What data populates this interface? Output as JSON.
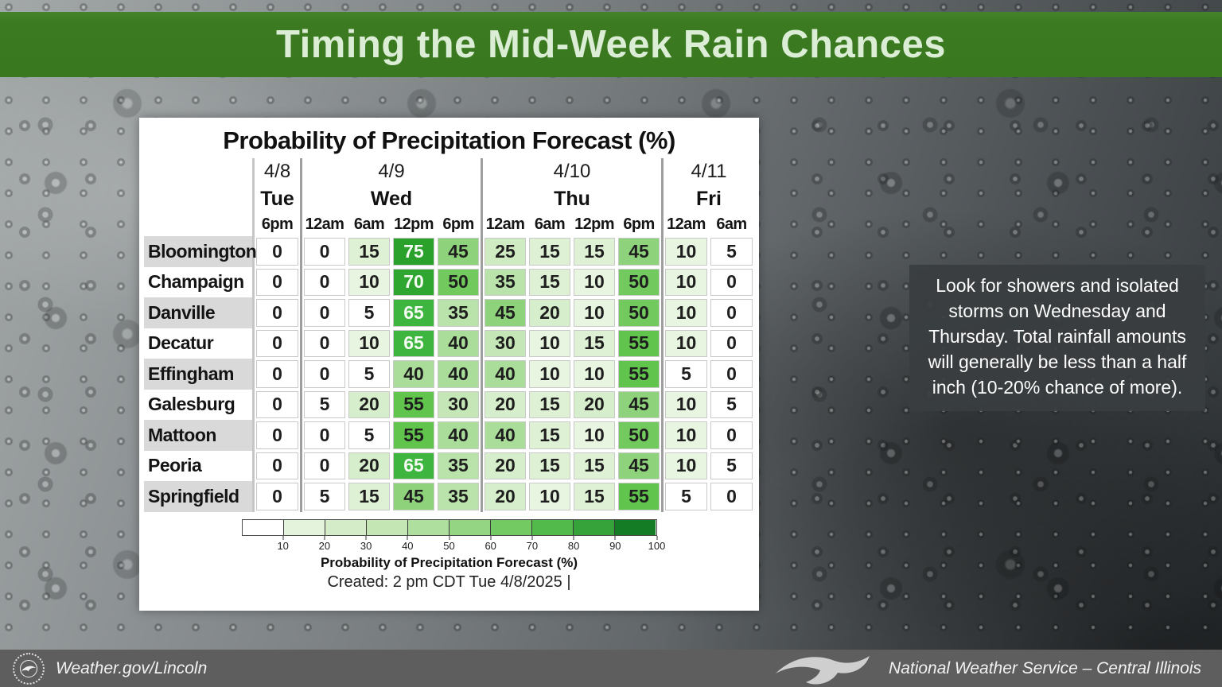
{
  "header": {
    "title": "Timing the Mid-Week Rain Chances"
  },
  "annotation": {
    "text": "Look for showers and isolated storms on Wednesday and Thursday. Total rainfall amounts will generally be less than a half inch (10-20% chance of more)."
  },
  "footer": {
    "site": "Weather.gov/Lincoln",
    "org": "National Weather Service – Central Illinois",
    "seal_icon": "nws-seal-icon",
    "bird_icon": "nws-bird-icon"
  },
  "chart_data": {
    "type": "heatmap",
    "title": "Probability of Precipitation Forecast (%)",
    "day_groups": [
      {
        "date": "4/8",
        "day": "Tue",
        "times": [
          "6pm"
        ]
      },
      {
        "date": "4/9",
        "day": "Wed",
        "times": [
          "12am",
          "6am",
          "12pm",
          "6pm"
        ]
      },
      {
        "date": "4/10",
        "day": "Thu",
        "times": [
          "12am",
          "6am",
          "12pm",
          "6pm"
        ]
      },
      {
        "date": "4/11",
        "day": "Fri",
        "times": [
          "12am",
          "6am"
        ]
      }
    ],
    "rows": [
      {
        "city": "Bloomington",
        "values": [
          0,
          0,
          15,
          75,
          45,
          25,
          15,
          15,
          45,
          10,
          5
        ]
      },
      {
        "city": "Champaign",
        "values": [
          0,
          0,
          10,
          70,
          50,
          35,
          15,
          10,
          50,
          10,
          0
        ]
      },
      {
        "city": "Danville",
        "values": [
          0,
          0,
          5,
          65,
          35,
          45,
          20,
          10,
          50,
          10,
          0
        ]
      },
      {
        "city": "Decatur",
        "values": [
          0,
          0,
          10,
          65,
          40,
          30,
          10,
          15,
          55,
          10,
          0
        ]
      },
      {
        "city": "Effingham",
        "values": [
          0,
          0,
          5,
          40,
          40,
          40,
          10,
          10,
          55,
          5,
          0
        ]
      },
      {
        "city": "Galesburg",
        "values": [
          0,
          5,
          20,
          55,
          30,
          20,
          15,
          20,
          45,
          10,
          5
        ]
      },
      {
        "city": "Mattoon",
        "values": [
          0,
          0,
          5,
          55,
          40,
          40,
          15,
          10,
          50,
          10,
          0
        ]
      },
      {
        "city": "Peoria",
        "values": [
          0,
          0,
          20,
          65,
          35,
          20,
          15,
          15,
          45,
          10,
          5
        ]
      },
      {
        "city": "Springfield",
        "values": [
          0,
          5,
          15,
          45,
          35,
          20,
          10,
          15,
          55,
          5,
          0
        ]
      }
    ],
    "value_colors": {
      "0": "#ffffff",
      "5": "#ffffff",
      "10": "#e8f5e1",
      "15": "#def1d5",
      "20": "#d6eecb",
      "25": "#cfebc2",
      "30": "#c5e7b8",
      "35": "#b9e3aa",
      "40": "#abdd9a",
      "45": "#8ed37c",
      "50": "#72c95e",
      "55": "#60c44d",
      "65": "#3eb53e",
      "70": "#2fa630",
      "75": "#2aa12b"
    },
    "white_text_threshold": 65,
    "legend": {
      "segment_colors": [
        "#ffffff",
        "#e4f3db",
        "#d4edc8",
        "#c3e6b4",
        "#afdf9e",
        "#93d582",
        "#74ca62",
        "#52b94b",
        "#35a23a",
        "#157c26"
      ],
      "ticks": [
        10,
        20,
        30,
        40,
        50,
        60,
        70,
        80,
        90,
        100
      ],
      "label": "Probability of Precipitation Forecast (%)",
      "created": "Created: 2 pm CDT Tue 4/8/2025  |"
    },
    "row_stripe_color": "#d9d9d9",
    "banner_green": "#3a7820",
    "legend_position": "bottom"
  }
}
